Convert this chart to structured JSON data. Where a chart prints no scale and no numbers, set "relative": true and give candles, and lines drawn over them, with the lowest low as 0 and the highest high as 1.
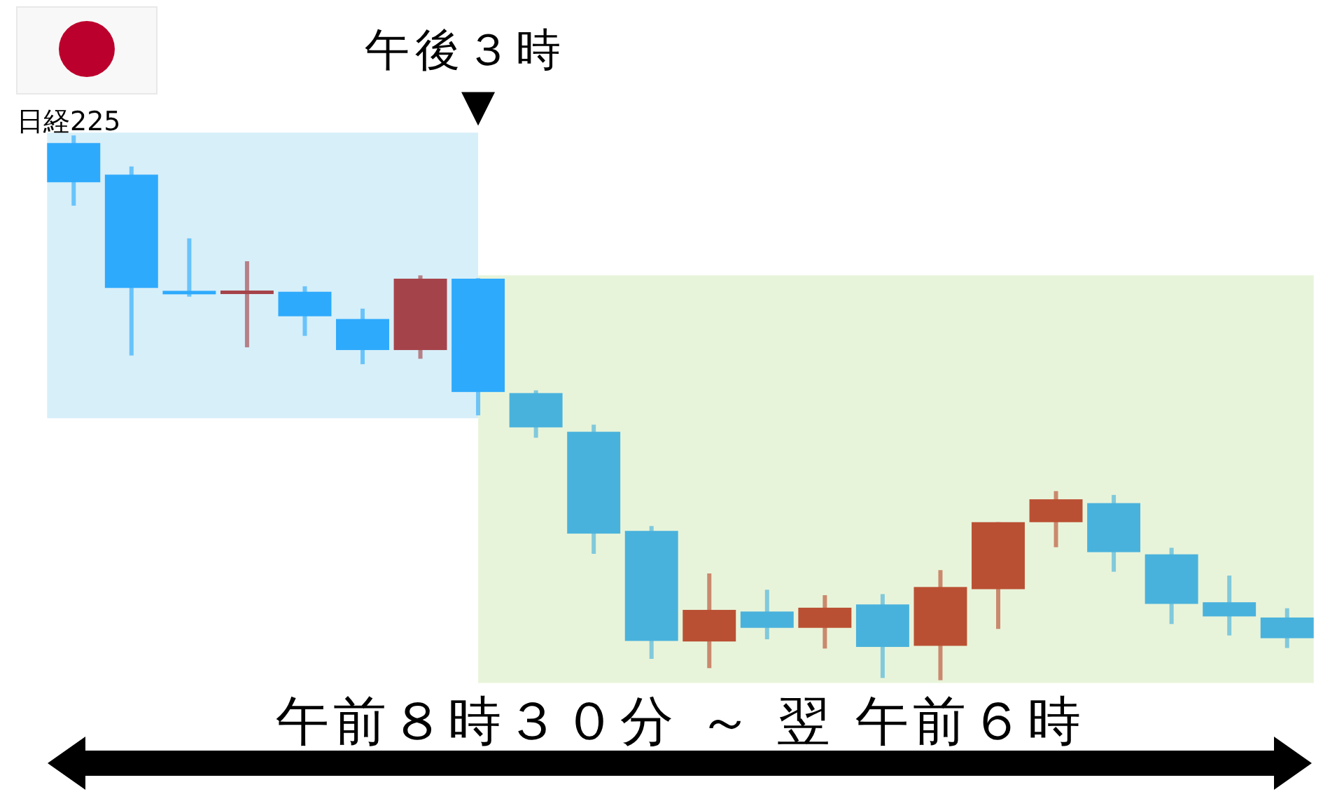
{
  "chart_data": {
    "type": "candlestick",
    "title": "日経225",
    "xlabel": "午前８時３０分 ～ 翌 午前６時",
    "annotations": [
      "午後３時"
    ],
    "relative": true,
    "categories": [
      null,
      null,
      null,
      null,
      null,
      null,
      null,
      null,
      null,
      null,
      null,
      null,
      null,
      null,
      null,
      null,
      null,
      null,
      null,
      null,
      null,
      null
    ],
    "ohlc": [
      [
        0.986,
        1,
        0.871,
        0.914
      ],
      [
        0.928,
        0.943,
        0.596,
        0.72
      ],
      [
        0.714,
        0.811,
        0.704,
        0.709
      ],
      [
        0.71,
        0.769,
        0.611,
        0.714
      ],
      [
        0.713,
        0.723,
        0.632,
        0.668
      ],
      [
        0.663,
        0.682,
        0.58,
        0.606
      ],
      [
        0.606,
        0.743,
        0.59,
        0.737
      ],
      [
        0.737,
        0.738,
        0.486,
        0.529
      ],
      [
        0.527,
        0.532,
        0.445,
        0.464
      ],
      [
        0.456,
        0.469,
        0.232,
        0.269
      ],
      [
        0.274,
        0.283,
        0.039,
        0.072
      ],
      [
        0.071,
        0.196,
        0.022,
        0.129
      ],
      [
        0.126,
        0.166,
        0.075,
        0.096
      ],
      [
        0.096,
        0.156,
        0.058,
        0.133
      ],
      [
        0.139,
        0.158,
        0.004,
        0.061
      ],
      [
        0.063,
        0.202,
        0,
        0.171
      ],
      [
        0.167,
        0.29,
        0.094,
        0.29
      ],
      [
        0.29,
        0.347,
        0.244,
        0.332
      ],
      [
        0.325,
        0.34,
        0.199,
        0.235
      ],
      [
        0.231,
        0.243,
        0.103,
        0.14
      ],
      [
        0.143,
        0.192,
        0.082,
        0.117
      ],
      [
        0.115,
        0.132,
        0.059,
        0.077
      ]
    ],
    "colors": [
      "#2eaafc",
      "#2eaafc",
      "#2eaafc",
      "#a5434a",
      "#2eaafc",
      "#2eaafc",
      "#a5434a",
      "#2eaafc",
      "#49b2dc",
      "#49b2dc",
      "#49b2dc",
      "#ba5033",
      "#49b2dc",
      "#ba5033",
      "#49b2dc",
      "#ba5033",
      "#ba5033",
      "#ba5033",
      "#49b2dc",
      "#49b2dc",
      "#49b2dc",
      "#49b2dc"
    ]
  }
}
